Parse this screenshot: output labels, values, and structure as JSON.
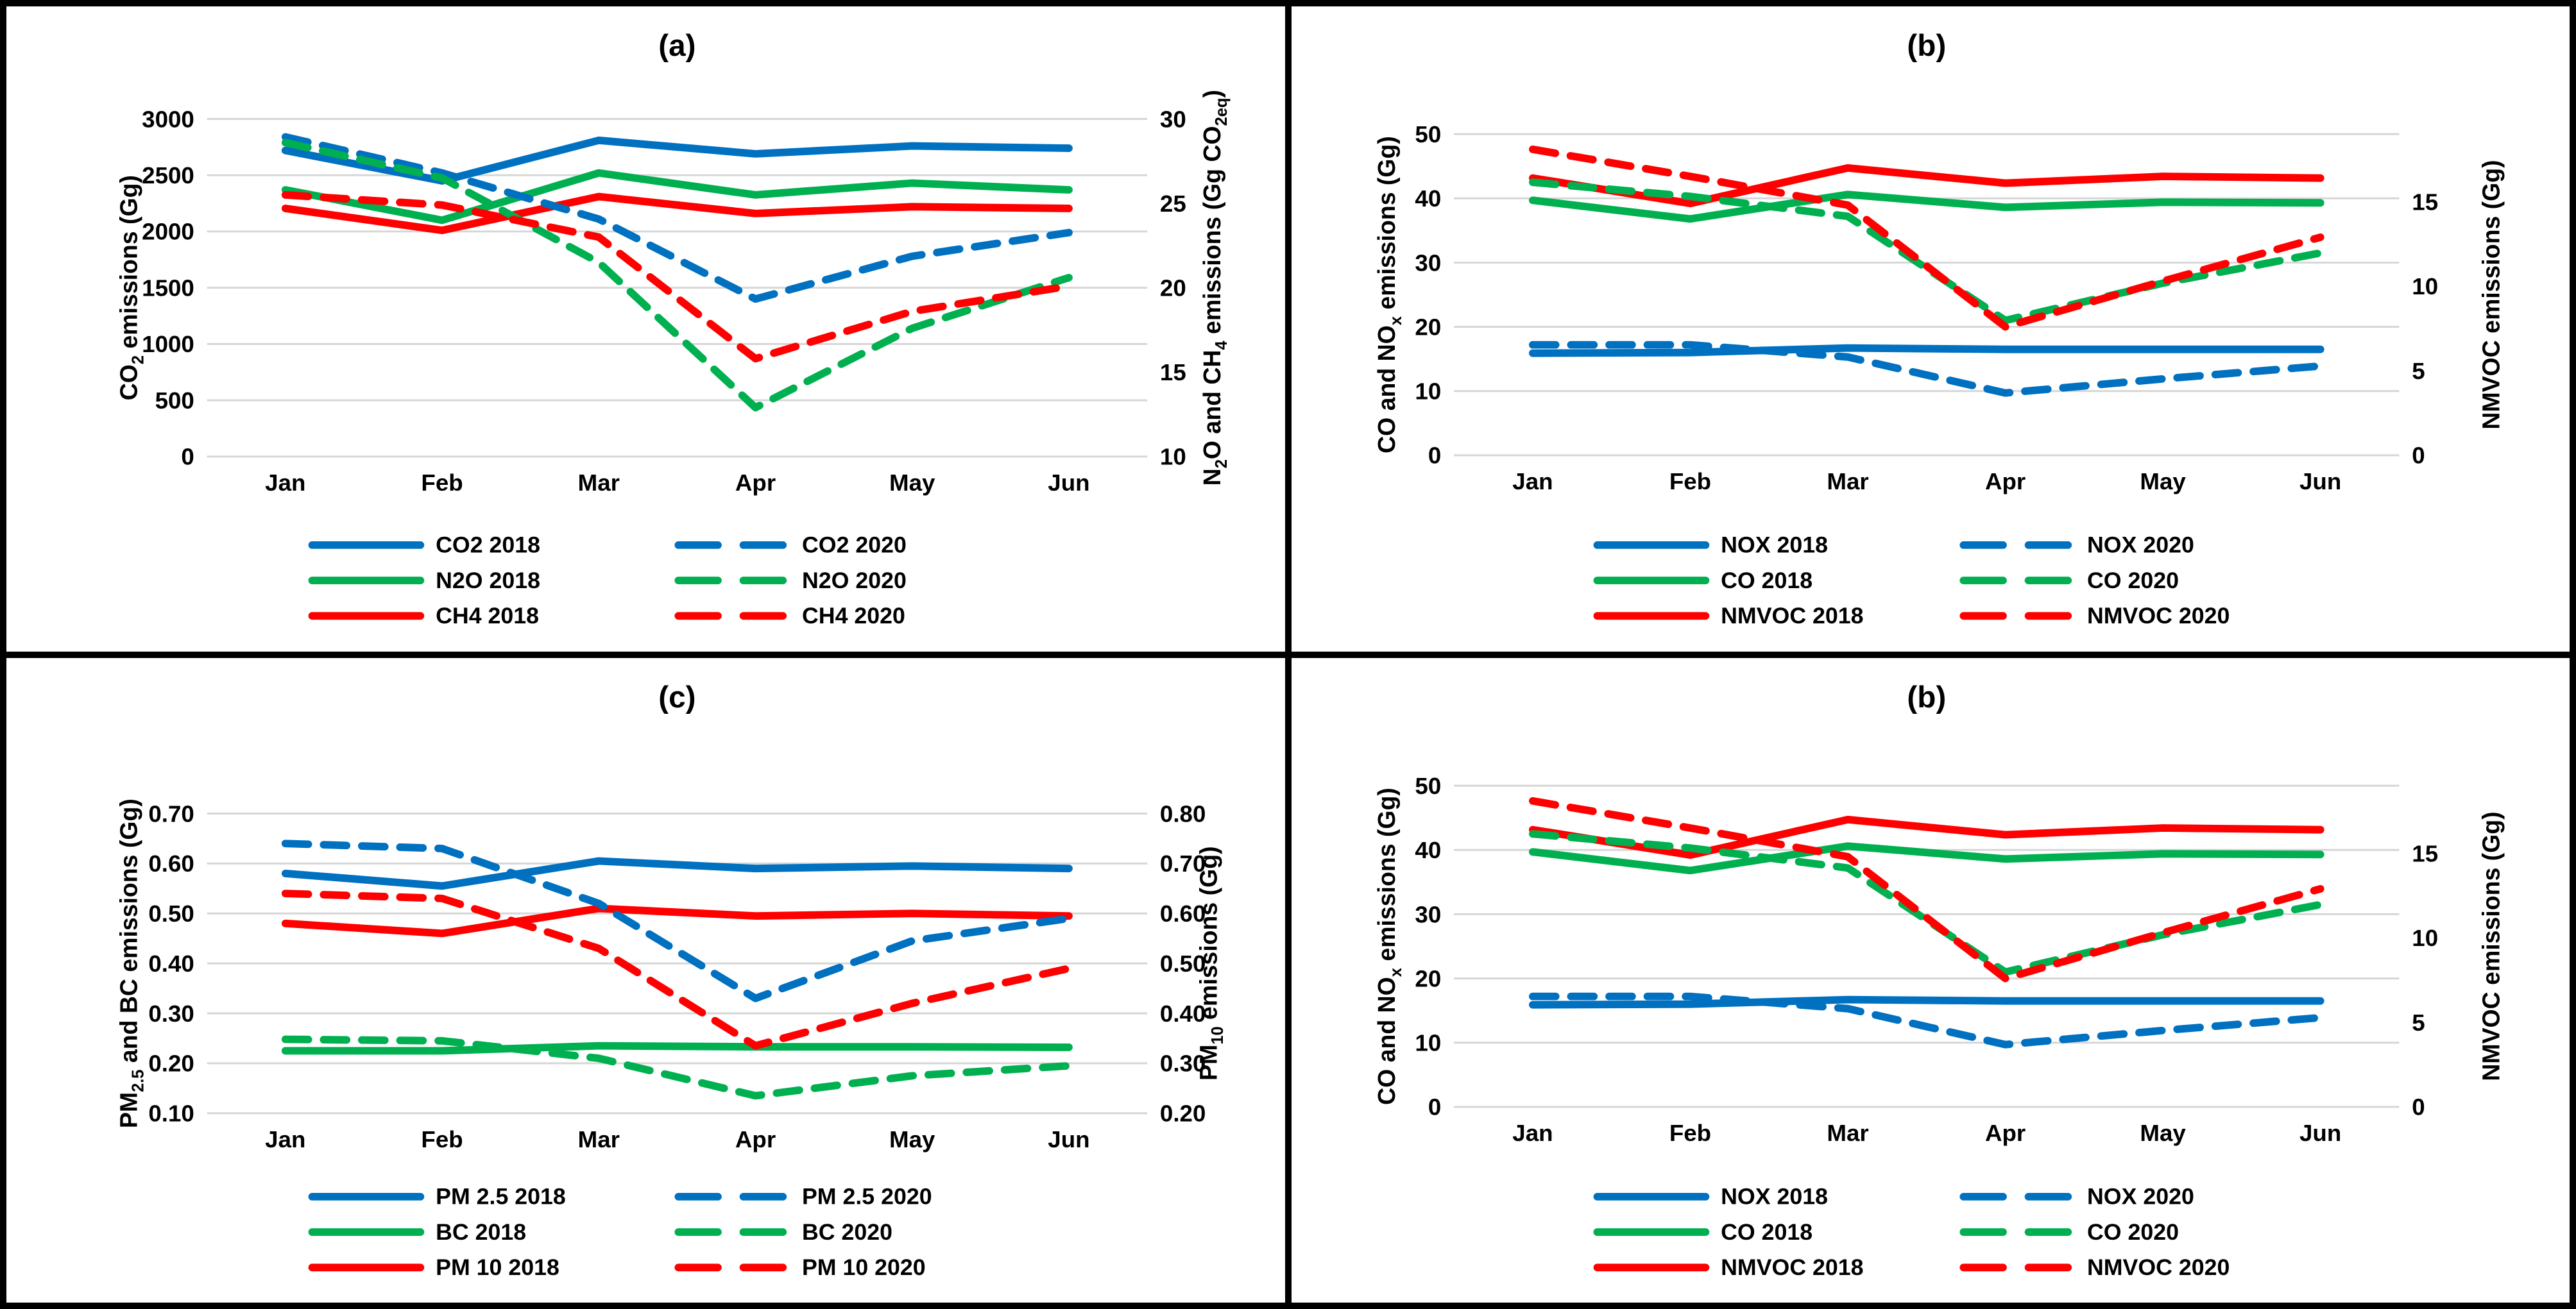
{
  "figure": {
    "background": "#ffffff",
    "frame_color": "#000000",
    "gridline_color": "#d6d6d6",
    "text_color": "#000000"
  },
  "chart_data": [
    {
      "id": "a",
      "title": "(a)",
      "type": "line",
      "categories": [
        "Jan",
        "Feb",
        "Mar",
        "Apr",
        "May",
        "Jun"
      ],
      "left_axis": {
        "title_markup": "CO_{2} emissions (Gg)",
        "min": 0,
        "max": 3000,
        "ticks": [
          3000,
          2500,
          2000,
          1500,
          1000,
          500,
          0
        ],
        "decimals": 0
      },
      "right_axis": {
        "title_markup": "N_{2}O and CH_{4} emissions (Gg CO_{2eq})",
        "min": 10,
        "max": 30,
        "ticks": [
          30,
          25,
          20,
          15,
          10
        ],
        "decimals": 0
      },
      "legend_position": "bottom",
      "series": [
        {
          "name": "CO2 2018",
          "axis": "left",
          "color": "#0070C0",
          "dash": false,
          "values": [
            2720,
            2450,
            2810,
            2690,
            2760,
            2740
          ]
        },
        {
          "name": "CO2 2020",
          "axis": "left",
          "color": "#0070C0",
          "dash": true,
          "values": [
            2840,
            2520,
            2110,
            1400,
            1780,
            1990
          ]
        },
        {
          "name": "N2O 2018",
          "axis": "right",
          "color": "#00B050",
          "dash": false,
          "values": [
            25.8,
            24.0,
            26.8,
            25.5,
            26.2,
            25.8
          ]
        },
        {
          "name": "N2O 2020",
          "axis": "right",
          "color": "#00B050",
          "dash": true,
          "values": [
            28.6,
            26.5,
            21.5,
            12.9,
            17.6,
            20.6
          ]
        },
        {
          "name": "CH4 2018",
          "axis": "right",
          "color": "#FF0000",
          "dash": false,
          "values": [
            24.7,
            23.4,
            25.4,
            24.4,
            24.8,
            24.7
          ]
        },
        {
          "name": "CH4 2020",
          "axis": "right",
          "color": "#FF0000",
          "dash": true,
          "values": [
            25.5,
            24.9,
            23.0,
            15.8,
            18.6,
            20.1
          ]
        }
      ]
    },
    {
      "id": "b",
      "title": "(b)",
      "type": "line",
      "categories": [
        "Jan",
        "Feb",
        "Mar",
        "Apr",
        "May",
        "Jun"
      ],
      "left_axis": {
        "title_markup": "CO and NO_{x} emissions (Gg)",
        "min": 0,
        "max": 50,
        "ticks": [
          50,
          40,
          30,
          20,
          10,
          0
        ],
        "decimals": 0
      },
      "right_axis": {
        "title_markup": "NMVOC emissions (Gg)",
        "min": 0,
        "max": 19,
        "ticks": [
          15,
          10,
          5,
          0
        ],
        "decimals": 0
      },
      "legend_position": "bottom",
      "series": [
        {
          "name": "NOX 2018",
          "axis": "left",
          "color": "#0070C0",
          "dash": false,
          "values": [
            15.9,
            16.0,
            16.7,
            16.5,
            16.5,
            16.5
          ]
        },
        {
          "name": "NOX 2020",
          "axis": "left",
          "color": "#0070C0",
          "dash": true,
          "values": [
            17.2,
            17.2,
            15.3,
            9.7,
            11.9,
            13.9
          ]
        },
        {
          "name": "CO 2018",
          "axis": "left",
          "color": "#00B050",
          "dash": false,
          "values": [
            39.7,
            36.8,
            40.6,
            38.6,
            39.4,
            39.3
          ]
        },
        {
          "name": "CO 2020",
          "axis": "left",
          "color": "#00B050",
          "dash": true,
          "values": [
            42.5,
            40.3,
            37.2,
            21.0,
            26.8,
            31.5
          ]
        },
        {
          "name": "NMVOC 2018",
          "axis": "right",
          "color": "#FF0000",
          "dash": false,
          "values": [
            16.4,
            14.9,
            17.0,
            16.1,
            16.5,
            16.4
          ]
        },
        {
          "name": "NMVOC 2020",
          "axis": "right",
          "color": "#FF0000",
          "dash": true,
          "values": [
            18.1,
            16.5,
            14.8,
            7.6,
            10.3,
            12.9
          ]
        }
      ]
    },
    {
      "id": "c",
      "title": "(c)",
      "type": "line",
      "categories": [
        "Jan",
        "Feb",
        "Mar",
        "Apr",
        "May",
        "Jun"
      ],
      "left_axis": {
        "title_markup": "PM_{2.5} and BC emissions (Gg)",
        "min": 0.1,
        "max": 0.7,
        "ticks": [
          0.7,
          0.6,
          0.5,
          0.4,
          0.3,
          0.2,
          0.1
        ],
        "decimals": 2
      },
      "right_axis": {
        "title_markup": "PM_{10} emissions (Gg)",
        "min": 0.2,
        "max": 0.8,
        "ticks": [
          0.8,
          0.7,
          0.6,
          0.5,
          0.4,
          0.3,
          0.2
        ],
        "decimals": 2
      },
      "legend_position": "bottom",
      "series": [
        {
          "name": "PM 2.5 2018",
          "axis": "left",
          "color": "#0070C0",
          "dash": false,
          "values": [
            0.58,
            0.555,
            0.605,
            0.59,
            0.595,
            0.59
          ]
        },
        {
          "name": "PM 2.5 2020",
          "axis": "left",
          "color": "#0070C0",
          "dash": true,
          "values": [
            0.64,
            0.63,
            0.52,
            0.33,
            0.445,
            0.49
          ]
        },
        {
          "name": "BC 2018",
          "axis": "left",
          "color": "#00B050",
          "dash": false,
          "values": [
            0.225,
            0.225,
            0.235,
            0.233,
            0.233,
            0.232
          ]
        },
        {
          "name": "BC 2020",
          "axis": "left",
          "color": "#00B050",
          "dash": true,
          "values": [
            0.248,
            0.245,
            0.21,
            0.135,
            0.175,
            0.195
          ]
        },
        {
          "name": "PM 10 2018",
          "axis": "right",
          "color": "#FF0000",
          "dash": false,
          "values": [
            0.58,
            0.56,
            0.61,
            0.595,
            0.6,
            0.595
          ]
        },
        {
          "name": "PM 10 2020",
          "axis": "right",
          "color": "#FF0000",
          "dash": true,
          "values": [
            0.64,
            0.63,
            0.53,
            0.335,
            0.42,
            0.49
          ]
        }
      ]
    },
    {
      "id": "d",
      "title": "(b)",
      "type": "line",
      "categories": [
        "Jan",
        "Feb",
        "Mar",
        "Apr",
        "May",
        "Jun"
      ],
      "left_axis": {
        "title_markup": "CO and NO_{x} emissions (Gg)",
        "min": 0,
        "max": 50,
        "ticks": [
          50,
          40,
          30,
          20,
          10,
          0
        ],
        "decimals": 0
      },
      "right_axis": {
        "title_markup": "NMVOC emissions (Gg)",
        "min": 0,
        "max": 19,
        "ticks": [
          15,
          10,
          5,
          0
        ],
        "decimals": 0
      },
      "legend_position": "bottom",
      "series": [
        {
          "name": "NOX 2018",
          "axis": "left",
          "color": "#0070C0",
          "dash": false,
          "values": [
            15.9,
            16.0,
            16.7,
            16.5,
            16.5,
            16.5
          ]
        },
        {
          "name": "NOX 2020",
          "axis": "left",
          "color": "#0070C0",
          "dash": true,
          "values": [
            17.2,
            17.2,
            15.3,
            9.7,
            11.9,
            13.9
          ]
        },
        {
          "name": "CO 2018",
          "axis": "left",
          "color": "#00B050",
          "dash": false,
          "values": [
            39.7,
            36.8,
            40.6,
            38.6,
            39.4,
            39.3
          ]
        },
        {
          "name": "CO 2020",
          "axis": "left",
          "color": "#00B050",
          "dash": true,
          "values": [
            42.5,
            40.3,
            37.2,
            21.0,
            26.8,
            31.5
          ]
        },
        {
          "name": "NMVOC 2018",
          "axis": "right",
          "color": "#FF0000",
          "dash": false,
          "values": [
            16.4,
            14.9,
            17.0,
            16.1,
            16.5,
            16.4
          ]
        },
        {
          "name": "NMVOC 2020",
          "axis": "right",
          "color": "#FF0000",
          "dash": true,
          "values": [
            18.1,
            16.5,
            14.8,
            7.6,
            10.3,
            12.9
          ]
        }
      ]
    }
  ]
}
